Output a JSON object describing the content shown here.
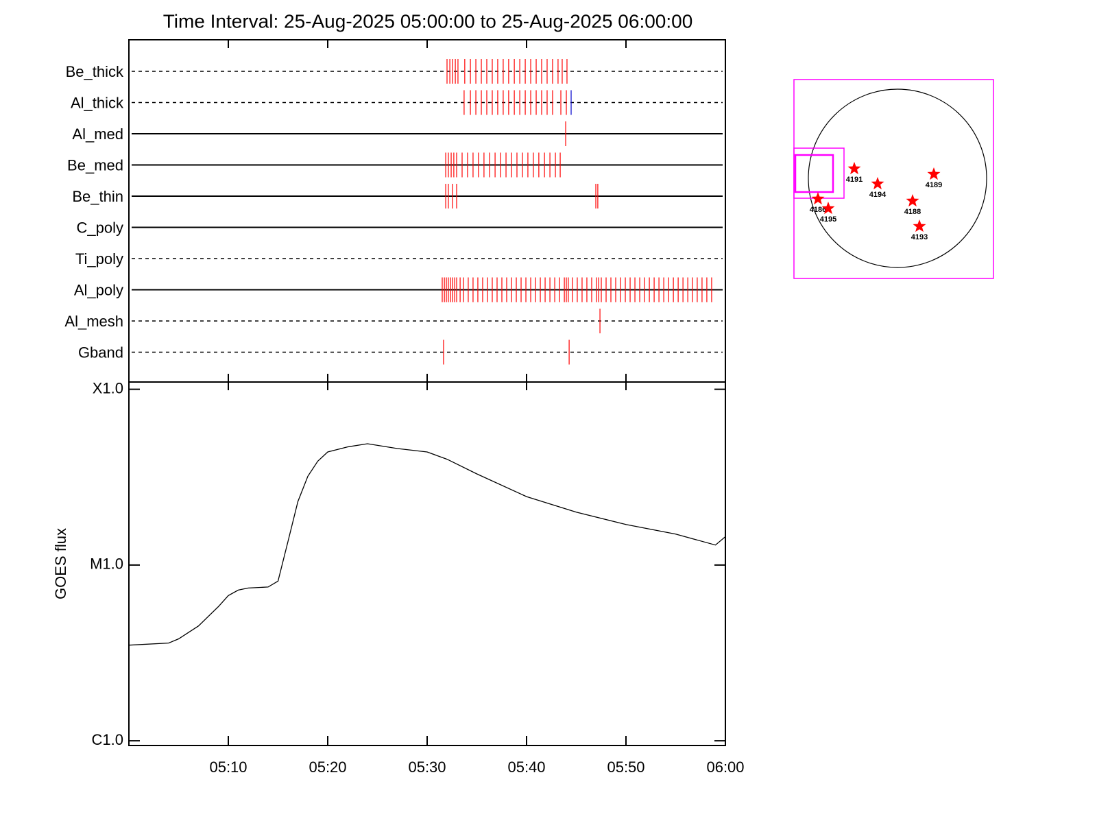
{
  "chart_data": {
    "type": "line",
    "title": "Time Interval: 25-Aug-2025 05:00:00 to 25-Aug-2025 06:00:00",
    "ylabel": "GOES flux",
    "x": [
      "05:00",
      "05:04",
      "05:05",
      "05:07",
      "05:09",
      "05:10",
      "05:11",
      "05:12",
      "05:14",
      "05:15",
      "05:16",
      "05:17",
      "05:18",
      "05:19",
      "05:20",
      "05:22",
      "05:24",
      "05:27",
      "05:30",
      "05:32",
      "05:35",
      "05:40",
      "05:45",
      "05:50",
      "05:55",
      "05:59",
      "06:00"
    ],
    "values": [
      3.5e-06,
      3.6e-06,
      3.8e-06,
      4.5e-06,
      5.8e-06,
      6.7e-06,
      7.2e-06,
      7.4e-06,
      7.5e-06,
      8.1e-06,
      1.36e-05,
      2.3e-05,
      3.2e-05,
      3.9e-05,
      4.4e-05,
      4.7e-05,
      4.9e-05,
      4.6e-05,
      4.4e-05,
      4e-05,
      3.3e-05,
      2.45e-05,
      2e-05,
      1.7e-05,
      1.5e-05,
      1.3e-05,
      1.45e-05
    ],
    "color": "#000000",
    "xlim": [
      "05:00",
      "06:00"
    ],
    "xticks": [
      "05:10",
      "05:20",
      "05:30",
      "05:40",
      "05:50",
      "06:00"
    ],
    "ylim": [
      9.4e-07,
      0.00011
    ],
    "yticks": [
      {
        "value": 1e-06,
        "label": "C1.0"
      },
      {
        "value": 1e-05,
        "label": "M1.0"
      },
      {
        "value": 0.0001,
        "label": "X1.0"
      }
    ],
    "log_y": true
  },
  "event_color": "#ff0000",
  "detectors": [
    {
      "name": "Be_thick",
      "line": "dashed",
      "events": [
        "05:32:00",
        "05:32:17",
        "05:32:33",
        "05:32:50",
        "05:33:06",
        "05:33:47",
        "05:34:21",
        "05:34:54",
        "05:35:27",
        "05:36:00",
        "05:36:33",
        "05:37:06",
        "05:37:39",
        "05:38:12",
        "05:38:46",
        "05:39:19",
        "05:39:52",
        "05:40:25",
        "05:40:58",
        "05:41:31",
        "05:42:04",
        "05:42:37",
        "05:43:10",
        "05:43:35",
        "05:44:04"
      ]
    },
    {
      "name": "Al_thick",
      "line": "dashed",
      "events": [
        "05:33:43",
        "05:34:21",
        "05:34:54",
        "05:35:27",
        "05:36:00",
        "05:36:33",
        "05:37:06",
        "05:37:39",
        "05:38:12",
        "05:38:46",
        "05:39:19",
        "05:39:52",
        "05:40:25",
        "05:40:58",
        "05:41:31",
        "05:42:04",
        "05:42:37",
        "05:43:27",
        "05:44:00"
      ],
      "other_events": [
        "05:44:29"
      ],
      "other_color": "#0000cc"
    },
    {
      "name": "Al_med",
      "line": "solid",
      "events": [
        "05:43:56"
      ]
    },
    {
      "name": "Be_med",
      "line": "solid",
      "events": [
        "05:31:52",
        "05:32:08",
        "05:32:25",
        "05:32:41",
        "05:32:58",
        "05:33:31",
        "05:34:04",
        "05:34:37",
        "05:35:10",
        "05:35:43",
        "05:36:17",
        "05:36:50",
        "05:37:23",
        "05:37:56",
        "05:38:29",
        "05:39:02",
        "05:39:35",
        "05:40:08",
        "05:40:41",
        "05:41:14",
        "05:41:48",
        "05:42:21",
        "05:42:54",
        "05:43:23"
      ]
    },
    {
      "name": "Be_thin",
      "line": "solid",
      "events": [
        "05:31:52",
        "05:32:08",
        "05:32:33",
        "05:32:58",
        "05:46:58",
        "05:47:10"
      ]
    },
    {
      "name": "C_poly",
      "line": "solid",
      "events": []
    },
    {
      "name": "Ti_poly",
      "line": "dashed",
      "events": []
    },
    {
      "name": "Al_poly",
      "line": "solid",
      "events": [
        "05:31:31",
        "05:31:44",
        "05:31:56",
        "05:32:08",
        "05:32:21",
        "05:32:33",
        "05:32:46",
        "05:32:58",
        "05:33:19",
        "05:33:39",
        "05:34:08",
        "05:34:37",
        "05:35:06",
        "05:35:35",
        "05:36:04",
        "05:36:33",
        "05:37:02",
        "05:37:31",
        "05:38:00",
        "05:38:29",
        "05:38:58",
        "05:39:27",
        "05:39:56",
        "05:40:25",
        "05:40:54",
        "05:41:23",
        "05:41:52",
        "05:42:21",
        "05:42:50",
        "05:43:19",
        "05:43:48",
        "05:44:00",
        "05:44:12",
        "05:44:37",
        "05:45:06",
        "05:45:35",
        "05:46:04",
        "05:46:33",
        "05:47:02",
        "05:47:15",
        "05:47:31",
        "05:48:00",
        "05:48:29",
        "05:48:58",
        "05:49:27",
        "05:49:56",
        "05:50:25",
        "05:50:54",
        "05:51:23",
        "05:51:52",
        "05:52:21",
        "05:52:50",
        "05:53:19",
        "05:53:48",
        "05:54:17",
        "05:54:46",
        "05:55:15",
        "05:55:44",
        "05:56:13",
        "05:56:41",
        "05:57:10",
        "05:57:39",
        "05:58:08",
        "05:58:37"
      ]
    },
    {
      "name": "Al_mesh",
      "line": "dashed",
      "events": [
        "05:47:23"
      ]
    },
    {
      "name": "Gband",
      "line": "dashed",
      "events": [
        "05:31:39",
        "05:44:17"
      ]
    }
  ],
  "map": {
    "regions": [
      "4191",
      "4194",
      "4189",
      "4188",
      "4193",
      "4186",
      "4195"
    ]
  }
}
